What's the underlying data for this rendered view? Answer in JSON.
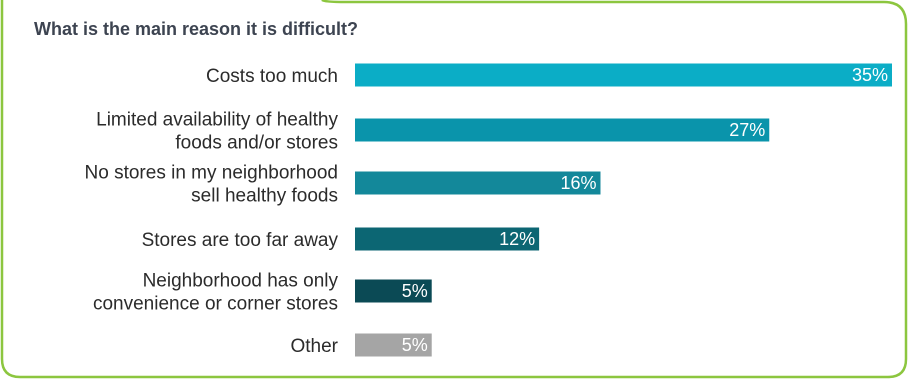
{
  "chart_data": {
    "type": "bar",
    "orientation": "horizontal",
    "title": "What is the main reason it is difficult?",
    "categories": [
      "Costs too much",
      "Limited availability of healthy foods and/or stores",
      "No stores in my neighborhood sell healthy foods",
      "Stores are too far away",
      "Neighborhood has only convenience or corner stores",
      "Other"
    ],
    "category_lines": [
      [
        "Costs too much"
      ],
      [
        "Limited availability of healthy",
        "foods and/or stores"
      ],
      [
        "No stores in my neighborhood",
        "sell healthy foods"
      ],
      [
        "Stores are too far away"
      ],
      [
        "Neighborhood has only",
        "convenience or corner stores"
      ],
      [
        "Other"
      ]
    ],
    "values": [
      35,
      27,
      16,
      12,
      5,
      5
    ],
    "value_labels": [
      "35%",
      "27%",
      "16%",
      "12%",
      "5%",
      "5%"
    ],
    "colors": [
      "#0badc6",
      "#0a94ab",
      "#13889a",
      "#0c6673",
      "#0b4a55",
      "#a5a5a5"
    ],
    "xlim": [
      0,
      35
    ],
    "grid": false,
    "legend": "none",
    "border_color": "#8cc63f"
  }
}
